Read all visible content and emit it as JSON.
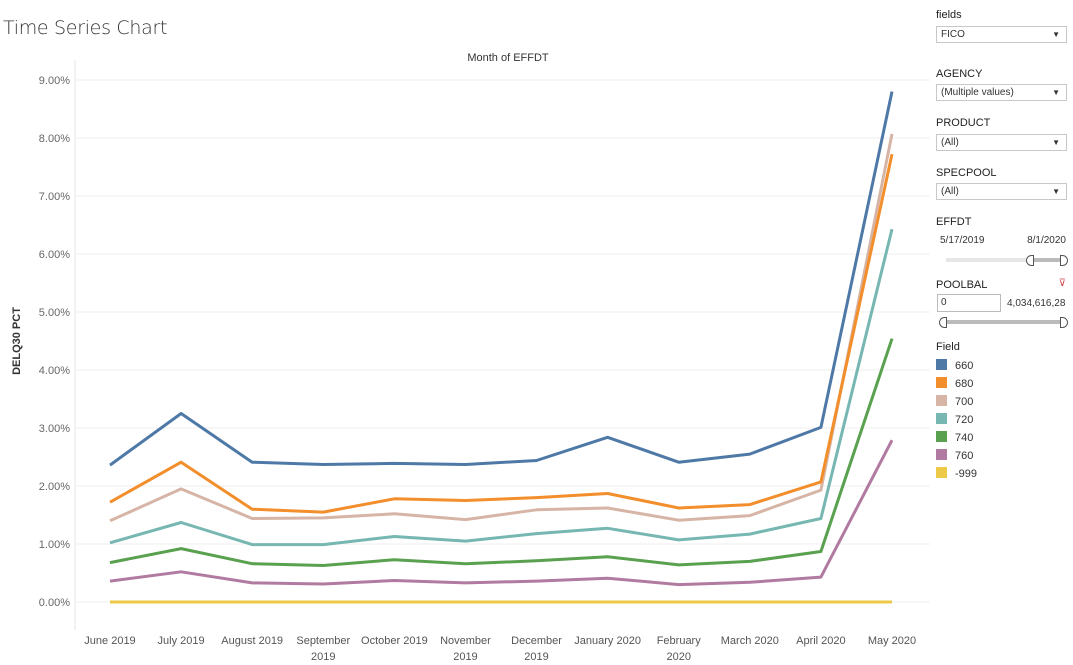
{
  "title": "Time Series Chart",
  "chart_data": {
    "type": "line",
    "title": "Month of EFFDT",
    "xlabel": "Month of EFFDT",
    "ylabel": "DELQ30 PCT",
    "ylim": [
      0,
      9
    ],
    "yticks": [
      "0.00%",
      "1.00%",
      "2.00%",
      "3.00%",
      "4.00%",
      "5.00%",
      "6.00%",
      "7.00%",
      "8.00%",
      "9.00%"
    ],
    "categories": [
      [
        "June 2019"
      ],
      [
        "July 2019"
      ],
      [
        "August 2019"
      ],
      [
        "September",
        "2019"
      ],
      [
        "October 2019"
      ],
      [
        "November",
        "2019"
      ],
      [
        "December",
        "2019"
      ],
      [
        "January 2020"
      ],
      [
        "February",
        "2020"
      ],
      [
        "March 2020"
      ],
      [
        "April 2020"
      ],
      [
        "May 2020"
      ]
    ],
    "series": [
      {
        "name": "660",
        "color": "#4e79a7",
        "values": [
          2.36,
          3.25,
          2.41,
          2.37,
          2.39,
          2.37,
          2.44,
          2.84,
          2.41,
          2.55,
          3.01,
          8.8
        ]
      },
      {
        "name": "680",
        "color": "#f28e2b",
        "values": [
          1.72,
          2.41,
          1.6,
          1.55,
          1.78,
          1.75,
          1.8,
          1.87,
          1.62,
          1.68,
          2.07,
          7.72
        ]
      },
      {
        "name": "700",
        "color": "#d7b5a6",
        "values": [
          1.4,
          1.95,
          1.44,
          1.45,
          1.52,
          1.42,
          1.59,
          1.62,
          1.41,
          1.49,
          1.93,
          8.07
        ]
      },
      {
        "name": "720",
        "color": "#76b7b2",
        "values": [
          1.02,
          1.37,
          0.99,
          0.99,
          1.13,
          1.05,
          1.18,
          1.27,
          1.07,
          1.17,
          1.44,
          6.43
        ]
      },
      {
        "name": "740",
        "color": "#59a14f",
        "values": [
          0.68,
          0.92,
          0.66,
          0.63,
          0.73,
          0.66,
          0.71,
          0.78,
          0.64,
          0.7,
          0.87,
          4.54
        ]
      },
      {
        "name": "760",
        "color": "#b07aa1",
        "values": [
          0.36,
          0.52,
          0.33,
          0.31,
          0.37,
          0.33,
          0.36,
          0.41,
          0.3,
          0.34,
          0.43,
          2.79
        ]
      },
      {
        "name": "-999",
        "color": "#edc948",
        "values": [
          0,
          0,
          0,
          0,
          0,
          0,
          0,
          0,
          0,
          0,
          0,
          0
        ]
      }
    ],
    "grid": true,
    "legend": "right"
  },
  "filters": {
    "fields": {
      "label": "fields",
      "value": "FICO"
    },
    "agency": {
      "label": "AGENCY",
      "value": "(Multiple values)"
    },
    "product": {
      "label": "PRODUCT",
      "value": "(All)"
    },
    "specpool": {
      "label": "SPECPOOL",
      "value": "(All)"
    },
    "effdt": {
      "label": "EFFDT",
      "min": "5/17/2019",
      "max": "8/1/2020",
      "low_fraction": 0.78,
      "high_fraction": 1.0
    },
    "poolbal": {
      "label": "POOLBAL",
      "min": "0",
      "max": "4,034,616,28",
      "low_fraction": 0,
      "high_fraction": 1.0
    }
  },
  "legend": {
    "title": "Field"
  }
}
